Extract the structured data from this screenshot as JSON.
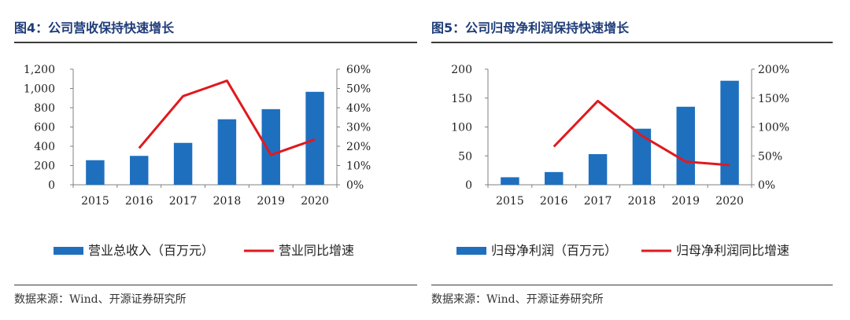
{
  "charts": [
    {
      "title": "图4：公司营收保持快速增长",
      "source": "数据来源：Wind、开源证券研究所",
      "chart_data": {
        "type": "bar",
        "categories": [
          "2015",
          "2016",
          "2017",
          "2018",
          "2019",
          "2020"
        ],
        "series": [
          {
            "name": "营业总收入（百万元）",
            "type": "bar",
            "axis": "left",
            "values": [
              255,
              300,
              435,
              680,
              785,
              965
            ],
            "color": "#1f6fbf"
          },
          {
            "name": "营业同比增速",
            "type": "line",
            "axis": "right",
            "values": [
              null,
              19,
              46,
              54,
              15.5,
              23.5
            ],
            "color": "#e0191e"
          }
        ],
        "y_left": {
          "min": 0,
          "max": 1200,
          "step": 200,
          "ticks": [
            "0",
            "200",
            "400",
            "600",
            "800",
            "1,000",
            "1,200"
          ]
        },
        "y_right": {
          "min": 0,
          "max": 60,
          "step": 10,
          "ticks": [
            "0%",
            "10%",
            "20%",
            "30%",
            "40%",
            "50%",
            "60%"
          ]
        },
        "legend_position": "bottom",
        "grid": false
      }
    },
    {
      "title": "图5：公司归母净利润保持快速增长",
      "source": "数据来源：Wind、开源证券研究所",
      "chart_data": {
        "type": "bar",
        "categories": [
          "2015",
          "2016",
          "2017",
          "2018",
          "2019",
          "2020"
        ],
        "series": [
          {
            "name": "归母净利润（百万元）",
            "type": "bar",
            "axis": "left",
            "values": [
              13,
              22,
              53,
              97,
              135,
              180
            ],
            "color": "#1f6fbf"
          },
          {
            "name": "归母净利润同比增速",
            "type": "line",
            "axis": "right",
            "values": [
              null,
              66,
              145,
              85,
              40,
              34
            ],
            "color": "#e0191e"
          }
        ],
        "y_left": {
          "min": 0,
          "max": 200,
          "step": 50,
          "ticks": [
            "0",
            "50",
            "100",
            "150",
            "200"
          ]
        },
        "y_right": {
          "min": 0,
          "max": 200,
          "step": 50,
          "ticks": [
            "0%",
            "50%",
            "100%",
            "150%",
            "200%"
          ]
        },
        "legend_position": "bottom",
        "grid": false
      }
    }
  ]
}
